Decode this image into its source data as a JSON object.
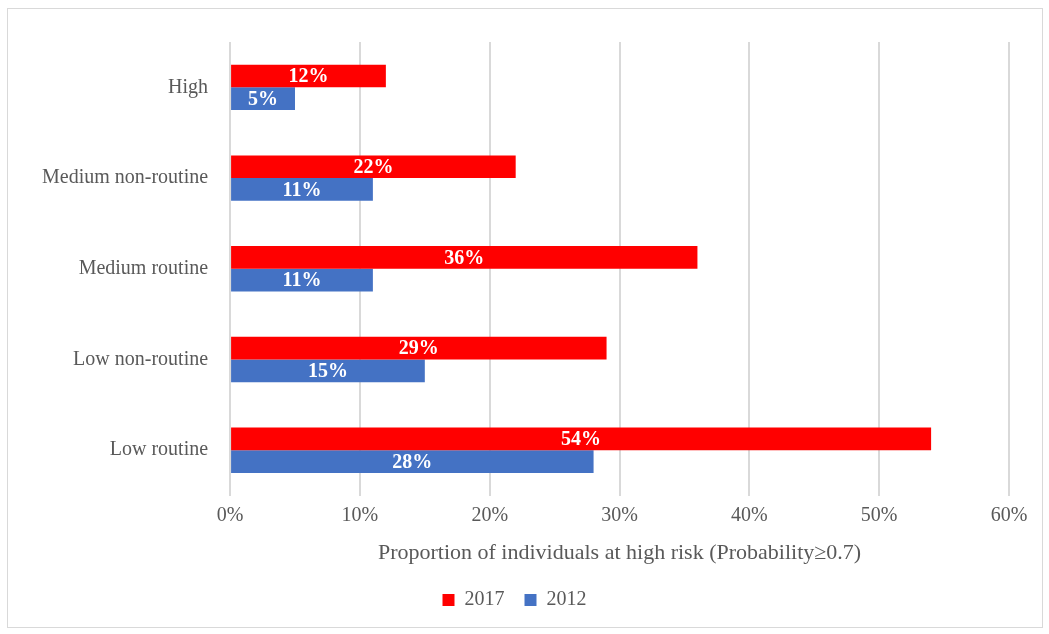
{
  "chart_data": {
    "type": "bar",
    "orientation": "horizontal",
    "xlabel": "Proportion of individuals at high risk (Probability≥0.7)",
    "categories": [
      "High",
      "Medium non-routine",
      "Medium routine",
      "Low non-routine",
      "Low routine"
    ],
    "series": [
      {
        "name": "2017",
        "color": "#ff0000",
        "values": [
          12,
          22,
          36,
          29,
          54
        ],
        "value_labels": [
          "12%",
          "22%",
          "36%",
          "29%",
          "54%"
        ]
      },
      {
        "name": "2012",
        "color": "#4472c4",
        "values": [
          5,
          11,
          11,
          15,
          28
        ],
        "value_labels": [
          "5%",
          "11%",
          "11%",
          "15%",
          "28%"
        ]
      }
    ],
    "xlim": [
      0,
      60
    ],
    "xticks": [
      {
        "value": 0,
        "label": "0%"
      },
      {
        "value": 10,
        "label": "10%"
      },
      {
        "value": 20,
        "label": "20%"
      },
      {
        "value": 30,
        "label": "30%"
      },
      {
        "value": 40,
        "label": "40%"
      },
      {
        "value": 50,
        "label": "50%"
      },
      {
        "value": 60,
        "label": "60%"
      }
    ],
    "grid": "x",
    "legend": "bottom"
  }
}
